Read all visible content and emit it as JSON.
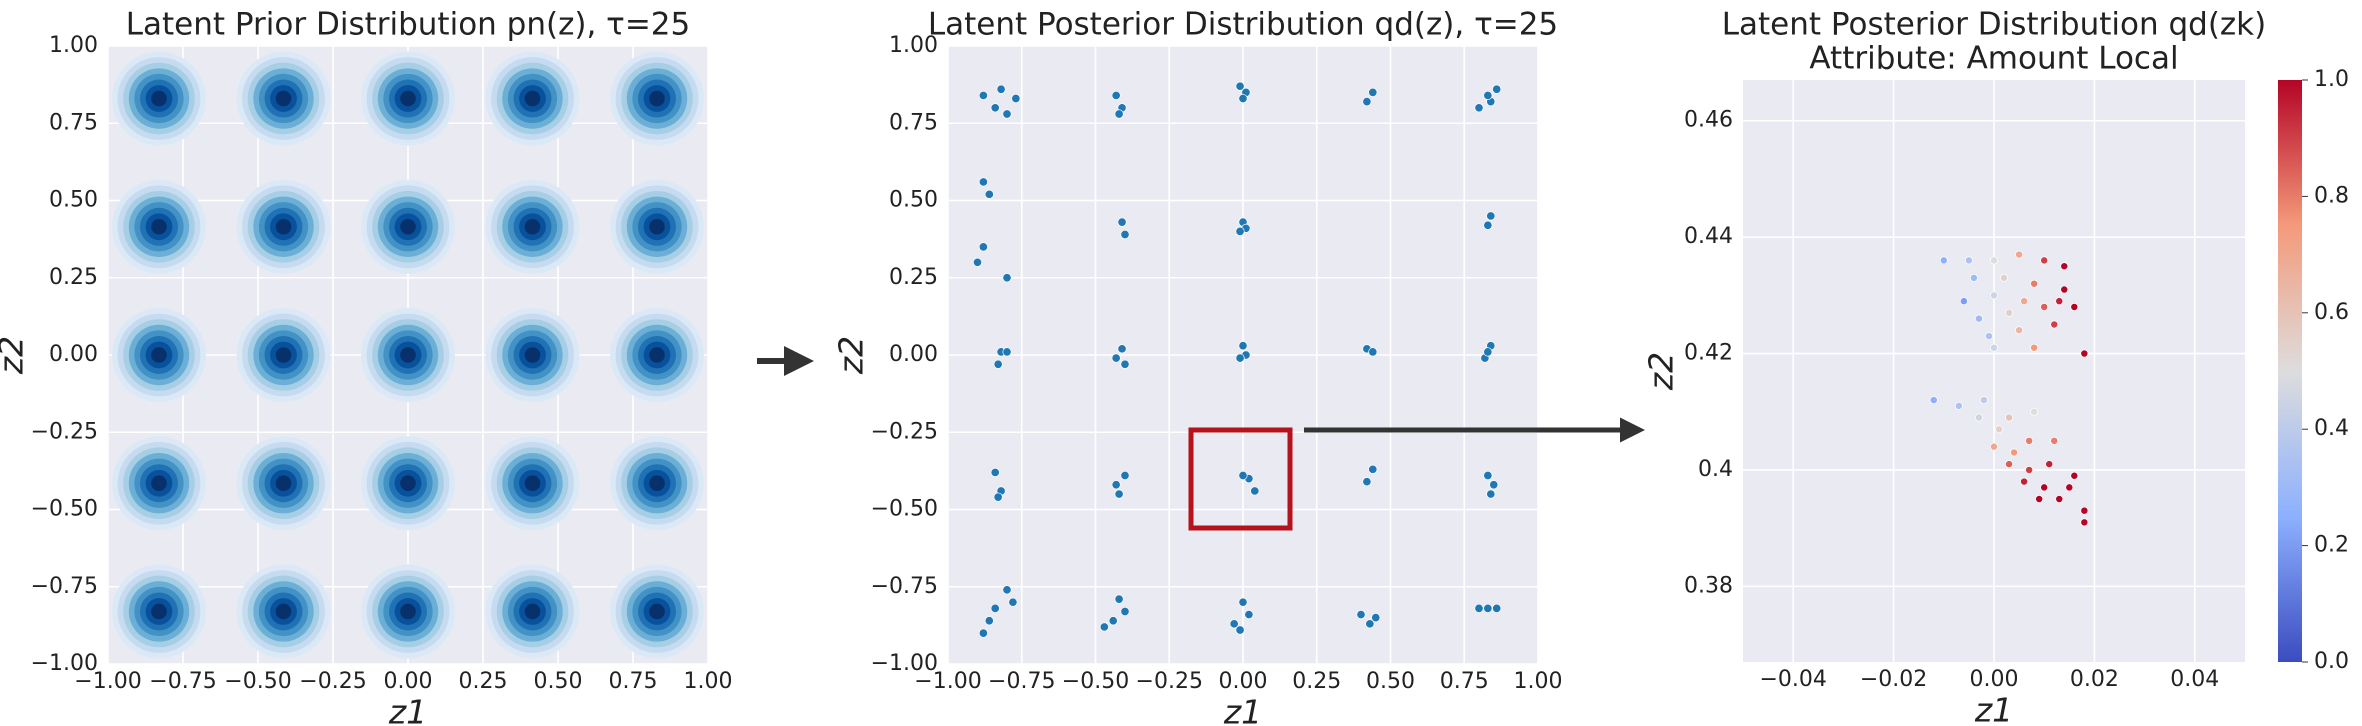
{
  "chart_data": [
    {
      "type": "contour",
      "title": "Latent Prior Distribution pn(z), τ=25",
      "xlabel": "z1",
      "ylabel": "z2",
      "colormap": "Blues",
      "x": [
        -0.83,
        -0.415,
        0,
        0.415,
        0.83,
        -0.83,
        -0.415,
        0,
        0.415,
        0.83,
        -0.83,
        -0.415,
        0,
        0.415,
        0.83,
        -0.83,
        -0.415,
        0,
        0.415,
        0.83,
        -0.83,
        -0.415,
        0,
        0.415,
        0.83
      ],
      "y": [
        0.83,
        0.83,
        0.83,
        0.83,
        0.83,
        0.415,
        0.415,
        0.415,
        0.415,
        0.415,
        0,
        0,
        0,
        0,
        0,
        -0.415,
        -0.415,
        -0.415,
        -0.415,
        -0.415,
        -0.83,
        -0.83,
        -0.83,
        -0.83,
        -0.83
      ],
      "xlim": [
        -1,
        1
      ],
      "ylim": [
        -1,
        1
      ],
      "xticks": [
        {
          "value": -1,
          "label": "−1.00"
        },
        {
          "value": -0.75,
          "label": "−0.75"
        },
        {
          "value": -0.5,
          "label": "−0.50"
        },
        {
          "value": -0.25,
          "label": "−0.25"
        },
        {
          "value": 0,
          "label": "0.00"
        },
        {
          "value": 0.25,
          "label": "0.25"
        },
        {
          "value": 0.5,
          "label": "0.50"
        },
        {
          "value": 0.75,
          "label": "0.75"
        },
        {
          "value": 1,
          "label": "1.00"
        }
      ],
      "yticks": [
        {
          "value": -1,
          "label": "−1.00"
        },
        {
          "value": -0.75,
          "label": "−0.75"
        },
        {
          "value": -0.5,
          "label": "−0.50"
        },
        {
          "value": -0.25,
          "label": "−0.25"
        },
        {
          "value": 0,
          "label": "0.00"
        },
        {
          "value": 0.25,
          "label": "0.25"
        },
        {
          "value": 0.5,
          "label": "0.50"
        },
        {
          "value": 0.75,
          "label": "0.75"
        },
        {
          "value": 1,
          "label": "1.00"
        }
      ],
      "grid": true
    },
    {
      "type": "scatter",
      "title": "Latent Posterior Distribution qd(z), τ=25",
      "xlabel": "z1",
      "ylabel": "z2",
      "color": "#1f77b4",
      "x": [
        -0.88,
        -0.84,
        -0.8,
        -0.77,
        -0.82,
        -0.43,
        -0.41,
        -0.42,
        -0.01,
        0.01,
        0,
        0.42,
        0.44,
        0.8,
        0.84,
        0.86,
        0.83,
        -0.88,
        -0.86,
        -0.9,
        -0.88,
        -0.8,
        0.84,
        0.83,
        -0.41,
        -0.4,
        0,
        0.01,
        -0.01,
        -0.82,
        -0.83,
        -0.8,
        -0.43,
        -0.41,
        -0.4,
        0,
        0.01,
        -0.01,
        0.42,
        0.44,
        0.82,
        0.84,
        0.83,
        -0.84,
        -0.82,
        -0.83,
        -0.42,
        -0.4,
        -0.43,
        0.02,
        0,
        0.04,
        0.42,
        0.44,
        0.83,
        0.85,
        0.84,
        -0.88,
        -0.84,
        -0.8,
        -0.78,
        -0.86,
        -0.47,
        -0.42,
        -0.4,
        -0.44,
        -0.03,
        0,
        0.02,
        -0.01,
        0.4,
        0.43,
        0.45,
        0.8,
        0.83,
        0.86
      ],
      "y": [
        0.84,
        0.8,
        0.78,
        0.83,
        0.86,
        0.84,
        0.8,
        0.78,
        0.87,
        0.85,
        0.83,
        0.82,
        0.85,
        0.8,
        0.82,
        0.86,
        0.84,
        0.56,
        0.52,
        0.3,
        0.35,
        0.25,
        0.45,
        0.42,
        0.43,
        0.39,
        0.43,
        0.41,
        0.4,
        0.01,
        -0.03,
        0.01,
        -0.01,
        0.02,
        -0.03,
        0.03,
        0,
        -0.01,
        0.02,
        0.01,
        -0.01,
        0.03,
        0.01,
        -0.38,
        -0.44,
        -0.46,
        -0.45,
        -0.39,
        -0.42,
        -0.4,
        -0.39,
        -0.44,
        -0.41,
        -0.37,
        -0.39,
        -0.42,
        -0.45,
        -0.9,
        -0.82,
        -0.76,
        -0.8,
        -0.86,
        -0.88,
        -0.79,
        -0.83,
        -0.86,
        -0.87,
        -0.8,
        -0.84,
        -0.89,
        -0.84,
        -0.87,
        -0.85,
        -0.82,
        -0.82,
        -0.82
      ],
      "xlim": [
        -1,
        1
      ],
      "ylim": [
        -1,
        1
      ],
      "xticks": [
        {
          "value": -1,
          "label": "−1.00"
        },
        {
          "value": -0.75,
          "label": "−0.75"
        },
        {
          "value": -0.5,
          "label": "−0.50"
        },
        {
          "value": -0.25,
          "label": "−0.25"
        },
        {
          "value": 0,
          "label": "0.00"
        },
        {
          "value": 0.25,
          "label": "0.25"
        },
        {
          "value": 0.5,
          "label": "0.50"
        },
        {
          "value": 0.75,
          "label": "0.75"
        },
        {
          "value": 1,
          "label": "1.00"
        }
      ],
      "yticks": [
        {
          "value": -1,
          "label": "−1.00"
        },
        {
          "value": -0.75,
          "label": "−0.75"
        },
        {
          "value": -0.5,
          "label": "−0.50"
        },
        {
          "value": -0.25,
          "label": "−0.25"
        },
        {
          "value": 0,
          "label": "0.00"
        },
        {
          "value": 0.25,
          "label": "0.25"
        },
        {
          "value": 0.5,
          "label": "0.50"
        },
        {
          "value": 0.75,
          "label": "0.75"
        },
        {
          "value": 1,
          "label": "1.00"
        }
      ],
      "grid": true
    },
    {
      "type": "scatter",
      "title": "Latent Posterior Distribution qd(zk)",
      "subtitle": "Attribute: Amount Local",
      "xlabel": "z1",
      "ylabel": "z2",
      "colormap": "coolwarm",
      "x": [
        -0.01,
        -0.005,
        0,
        0.005,
        0.01,
        0.014,
        -0.004,
        0.002,
        0.008,
        0.014,
        -0.006,
        0,
        0.006,
        0.013,
        -0.003,
        0.003,
        0.01,
        0.016,
        -0.001,
        0.005,
        0.012,
        0,
        0.008,
        0.018,
        -0.012,
        -0.007,
        -0.003,
        0.001,
        0.004,
        0.007,
        0.01,
        0.013,
        -0.002,
        0.003,
        0.007,
        0.011,
        0.015,
        0.018,
        0,
        0.003,
        0.006,
        0.009,
        0.008,
        0.012,
        0.016,
        0.018
      ],
      "y": [
        0.436,
        0.436,
        0.436,
        0.437,
        0.436,
        0.435,
        0.433,
        0.433,
        0.432,
        0.431,
        0.429,
        0.43,
        0.429,
        0.429,
        0.426,
        0.427,
        0.428,
        0.428,
        0.423,
        0.424,
        0.425,
        0.421,
        0.421,
        0.42,
        0.412,
        0.411,
        0.409,
        0.407,
        0.403,
        0.4,
        0.397,
        0.395,
        0.412,
        0.409,
        0.405,
        0.401,
        0.397,
        0.393,
        0.404,
        0.401,
        0.398,
        0.395,
        0.41,
        0.405,
        0.399,
        0.391
      ],
      "c": [
        0.25,
        0.35,
        0.5,
        0.7,
        0.9,
        1,
        0.3,
        0.55,
        0.8,
        1,
        0.2,
        0.45,
        0.7,
        0.95,
        0.3,
        0.55,
        0.85,
        1,
        0.35,
        0.65,
        0.9,
        0.45,
        0.75,
        1,
        0.25,
        0.35,
        0.45,
        0.55,
        0.75,
        0.9,
        1,
        1,
        0.4,
        0.6,
        0.8,
        0.95,
        1,
        1,
        0.7,
        0.85,
        0.95,
        1,
        0.5,
        0.8,
        1,
        1
      ],
      "xlim": [
        -0.05,
        0.05
      ],
      "ylim": [
        0.367,
        0.467
      ],
      "xticks": [
        {
          "value": -0.04,
          "label": "−0.04"
        },
        {
          "value": -0.02,
          "label": "−0.02"
        },
        {
          "value": 0,
          "label": "0.00"
        },
        {
          "value": 0.02,
          "label": "0.02"
        },
        {
          "value": 0.04,
          "label": "0.04"
        }
      ],
      "yticks": [
        0.38,
        0.4,
        0.42,
        0.44,
        0.46
      ],
      "clim": [
        0,
        1
      ],
      "cticks": [
        {
          "value": 0,
          "label": "0.0"
        },
        {
          "value": 0.2,
          "label": "0.2"
        },
        {
          "value": 0.4,
          "label": "0.4"
        },
        {
          "value": 0.6,
          "label": "0.6"
        },
        {
          "value": 0.8,
          "label": "0.8"
        },
        {
          "value": 1,
          "label": "1.0"
        }
      ],
      "grid": true
    }
  ]
}
